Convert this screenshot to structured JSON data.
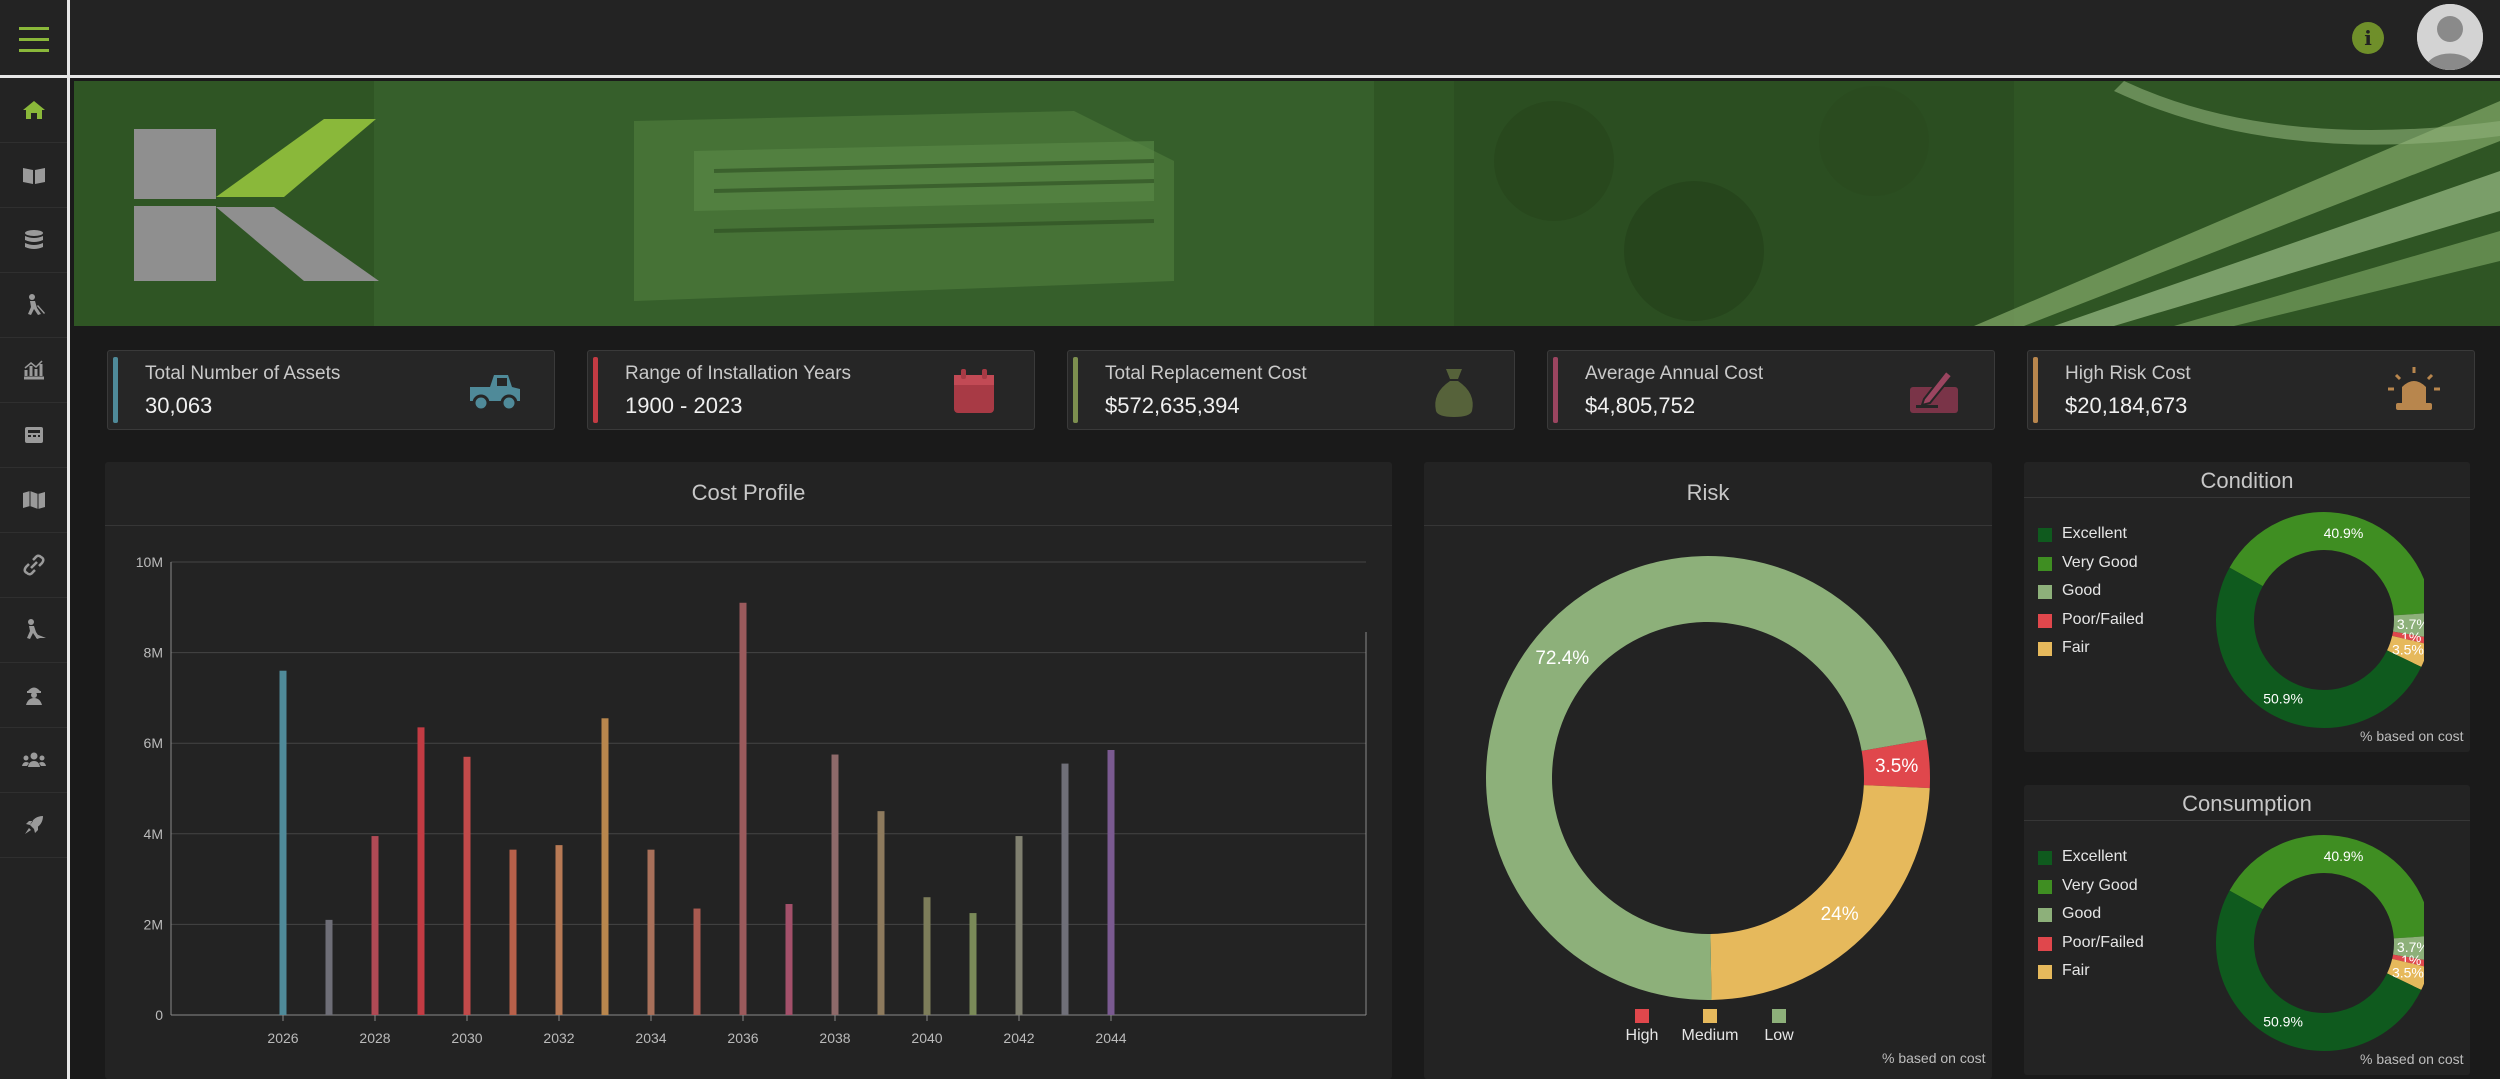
{
  "colors": {
    "accent": "#8ab83a",
    "excellent": "#0f5a1e",
    "very_good": "#3f8e22",
    "good": "#8db07a",
    "poor": "#e0474c",
    "fair": "#e6b95c"
  },
  "header": {
    "menu_icon": "hamburger-icon",
    "info_icon": "info-icon",
    "avatar_icon": "user-avatar"
  },
  "sidebar": {
    "items": [
      {
        "icon": "home-icon"
      },
      {
        "icon": "book-open-icon"
      },
      {
        "icon": "database-icon"
      },
      {
        "icon": "worker-icon"
      },
      {
        "icon": "analytics-icon"
      },
      {
        "icon": "calculator-icon"
      },
      {
        "icon": "map-icon"
      },
      {
        "icon": "link-icon"
      },
      {
        "icon": "construction-icon"
      },
      {
        "icon": "inspector-icon"
      },
      {
        "icon": "team-icon"
      },
      {
        "icon": "rocket-icon"
      }
    ]
  },
  "kpis": [
    {
      "label": "Total Number of Assets",
      "value": "30,063",
      "color": "#4f8a99",
      "icon": "truck-icon"
    },
    {
      "label": "Range of Installation Years",
      "value": "1900 - 2023",
      "color": "#c23b43",
      "icon": "calendar-icon"
    },
    {
      "label": "Total Replacement Cost",
      "value": "$572,635,394",
      "color": "#7d8f4f",
      "icon": "money-bag-icon"
    },
    {
      "label": "Average Annual Cost",
      "value": "$4,805,752",
      "color": "#9b4560",
      "icon": "sign-contract-icon"
    },
    {
      "label": "High Risk Cost",
      "value": "$20,184,673",
      "color": "#b8864d",
      "icon": "alarm-light-icon"
    }
  ],
  "cost_profile": {
    "title": "Cost Profile",
    "chart_data": {
      "type": "bar",
      "categories": [
        "2026",
        "2027",
        "2028",
        "2029",
        "2030",
        "2031",
        "2032",
        "2033",
        "2034",
        "2035",
        "2036",
        "2037",
        "2038",
        "2039",
        "2040",
        "2041",
        "2042",
        "2043",
        "2044"
      ],
      "values": [
        7.6,
        2.1,
        3.95,
        6.35,
        5.7,
        3.65,
        3.75,
        6.55,
        3.65,
        2.35,
        9.1,
        2.45,
        5.75,
        4.5,
        2.6,
        2.25,
        3.95,
        5.55,
        5.85
      ],
      "bar_colors": [
        "#4f8a99",
        "#6e6e77",
        "#b04a55",
        "#c23b43",
        "#c24a4a",
        "#b8604a",
        "#b87a55",
        "#b8864d",
        "#a8705a",
        "#a85a50",
        "#9b5a5c",
        "#a3506a",
        "#8e6a6a",
        "#8d7a5d",
        "#7d7d5a",
        "#7a8a58",
        "#7f7f6f",
        "#6f6f78",
        "#7a5a90"
      ],
      "xtick_labels": [
        "2026",
        "2028",
        "2030",
        "2032",
        "2034",
        "2036",
        "2038",
        "2040",
        "2042",
        "2044"
      ],
      "ytick_labels": [
        "0",
        "2M",
        "4M",
        "6M",
        "8M",
        "10M"
      ],
      "ylim": [
        0,
        10
      ]
    }
  },
  "risk": {
    "title": "Risk",
    "chart_data": {
      "type": "pie",
      "categories": [
        "High",
        "Medium",
        "Low"
      ],
      "values": [
        3.5,
        24,
        72.4
      ],
      "labels": [
        "3.5%",
        "24%",
        "72.4%"
      ],
      "colors": [
        "#e0474c",
        "#e6b95c",
        "#8db07a"
      ]
    },
    "legend": [
      "High",
      "Medium",
      "Low"
    ],
    "note": "% based on cost"
  },
  "condition": {
    "title": "Condition",
    "legend": [
      "Excellent",
      "Very Good",
      "Good",
      "Poor/Failed",
      "Fair"
    ],
    "chart_data": {
      "type": "pie",
      "categories": [
        "Very Good",
        "Good",
        "Poor/Failed",
        "Fair",
        "Excellent"
      ],
      "values": [
        40.9,
        3.7,
        1,
        3.5,
        50.9
      ],
      "labels": [
        "40.9%",
        "3.7%",
        "1%",
        "3.5%",
        "50.9%"
      ]
    },
    "note": "% based on cost"
  },
  "consumption": {
    "title": "Consumption",
    "legend": [
      "Excellent",
      "Very Good",
      "Good",
      "Poor/Failed",
      "Fair"
    ],
    "chart_data": {
      "type": "pie",
      "categories": [
        "Very Good",
        "Good",
        "Poor/Failed",
        "Fair",
        "Excellent"
      ],
      "values": [
        40.9,
        3.7,
        1,
        3.5,
        50.9
      ],
      "labels": [
        "40.9%",
        "3.7%",
        "1%",
        "3.5%",
        "50.9%"
      ]
    },
    "note": "% based on cost"
  }
}
